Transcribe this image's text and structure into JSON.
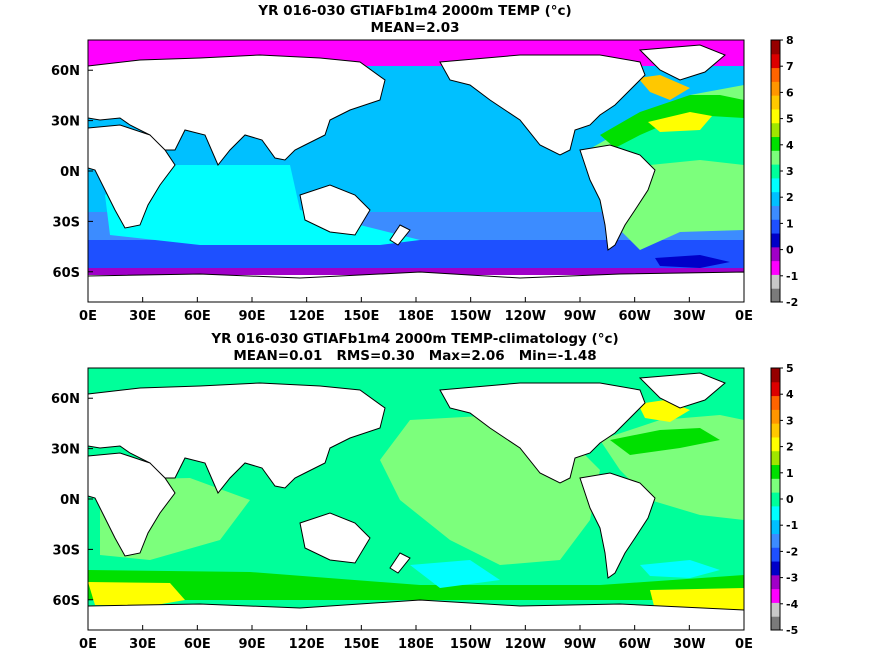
{
  "top": {
    "title": "YR 016-030 GTIAFb1m4 2000m TEMP (°c)",
    "stats": "MEAN=2.03",
    "lon_ticks": [
      "0E",
      "30E",
      "60E",
      "90E",
      "120E",
      "150E",
      "180E",
      "150W",
      "120W",
      "90W",
      "60W",
      "30W",
      "0E"
    ],
    "lat_ticks": [
      "60N",
      "30N",
      "0N",
      "30S",
      "60S"
    ],
    "colorbar_ticks": [
      "8",
      "7",
      "6",
      "5",
      "4",
      "3",
      "2",
      "1",
      "0",
      "-1",
      "-2"
    ]
  },
  "bottom": {
    "title": "YR 016-030 GTIAFb1m4 2000m TEMP-climatology (°c)",
    "stats": "MEAN=0.01   RMS=0.30   Max=2.06   Min=-1.48",
    "lon_ticks": [
      "0E",
      "30E",
      "60E",
      "90E",
      "120E",
      "150E",
      "180E",
      "150W",
      "120W",
      "90W",
      "60W",
      "30W",
      "0E"
    ],
    "lat_ticks": [
      "60N",
      "30N",
      "0N",
      "30S",
      "60S"
    ],
    "colorbar_ticks": [
      "5",
      "4",
      "3",
      "2",
      "1",
      "0",
      "-1",
      "-2",
      "-3",
      "-4",
      "-5"
    ]
  },
  "colors": {
    "scale": [
      "#7a7a7a",
      "#c8c8c8",
      "#ff00ff",
      "#a000c8",
      "#0000c8",
      "#1e50ff",
      "#3c8cff",
      "#00c0ff",
      "#00ffff",
      "#00ff9a",
      "#7cff7c",
      "#00e000",
      "#a0e600",
      "#ffff00",
      "#ffc800",
      "#ff9600",
      "#ff6400",
      "#dc0000",
      "#960000"
    ],
    "land": "#ffffff"
  }
}
